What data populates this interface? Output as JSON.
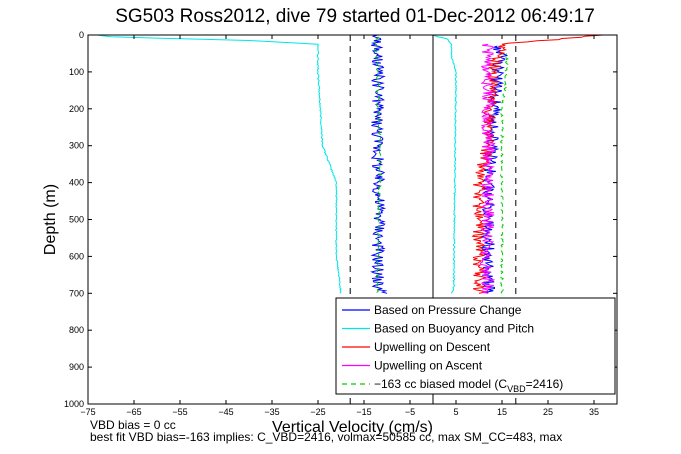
{
  "chart_data": {
    "type": "line",
    "title": "SG503 Ross2012, dive 79 started 01-Dec-2012 06:49:17",
    "xlabel": "Vertical Velocity (cm/s)",
    "ylabel": "Depth (m)",
    "xlim": [
      -75,
      40
    ],
    "ylim": [
      0,
      1000
    ],
    "y_reversed": true,
    "xticks": [
      -75,
      -65,
      -55,
      -45,
      -35,
      -25,
      -15,
      -5,
      5,
      15,
      25,
      35
    ],
    "yticks": [
      0,
      100,
      200,
      300,
      400,
      500,
      600,
      700,
      800,
      900,
      1000
    ],
    "grid": false,
    "legend_position": "bottom-right",
    "vertical_lines": [
      {
        "x": 0,
        "style": "solid",
        "color": "#000000"
      },
      {
        "x": -18,
        "style": "dashed",
        "color": "#000000"
      },
      {
        "x": 18,
        "style": "dashed",
        "color": "#000000"
      }
    ],
    "series": [
      {
        "name": "Based on Pressure Change",
        "color": "#0000ff",
        "style": "solid",
        "segments": [
          {
            "depth": [
              0,
              25,
              100,
              200,
              300,
              400,
              500,
              600,
              690,
              700
            ],
            "velocity": [
              -12,
              -12.5,
              -12,
              -12,
              -12,
              -12,
              -11.5,
              -12,
              -12,
              -10
            ]
          },
          {
            "depth": [
              700,
              690,
              600,
              500,
              400,
              300,
              200,
              100,
              50,
              30
            ],
            "velocity": [
              12,
              12,
              12,
              12,
              12,
              13,
              13.5,
              14,
              15,
              14
            ]
          }
        ]
      },
      {
        "name": "Based on Buoyancy and Pitch",
        "color": "#00e6e6",
        "style": "solid",
        "segments": [
          {
            "depth": [
              0,
              5,
              15,
              25,
              100,
              300,
              400,
              500,
              600,
              700
            ],
            "velocity": [
              -73,
              -70,
              -40,
              -25,
              -25,
              -24,
              -21,
              -21,
              -21,
              -20
            ]
          },
          {
            "depth": [
              700,
              690,
              100,
              60,
              25,
              10,
              5,
              0
            ],
            "velocity": [
              4,
              4.5,
              5,
              4,
              4,
              3,
              1,
              0
            ]
          }
        ]
      },
      {
        "name": "Upwelling on Descent",
        "color": "#ff0000",
        "style": "solid",
        "segments": [
          {
            "depth": [
              0,
              25,
              100,
              200,
              300,
              400,
              500,
              600,
              700
            ],
            "velocity": [
              37,
              15,
              13,
              12.5,
              12,
              10,
              10,
              10,
              10
            ]
          }
        ]
      },
      {
        "name": "Upwelling on Ascent",
        "color": "#ff00ff",
        "style": "solid",
        "segments": [
          {
            "depth": [
              700,
              600,
              500,
              400,
              300,
              200,
              100,
              25
            ],
            "velocity": [
              12,
              11.5,
              12,
              12,
              12,
              12,
              12,
              12
            ]
          }
        ]
      },
      {
        "name": "−163 cc biased model (C",
        "name_subscript": "VBD",
        "name_suffix": "=2416)",
        "color": "#00cc00",
        "style": "dashed",
        "segments": [
          {
            "depth": [
              5,
              25,
              100,
              200,
              300,
              400,
              500,
              600,
              700
            ],
            "velocity": [
              -12,
              -12.5,
              -12,
              -12,
              -11.5,
              -11.5,
              -12,
              -12,
              -12
            ]
          },
          {
            "depth": [
              700,
              600,
              500,
              400,
              300,
              200,
              100,
              50
            ],
            "velocity": [
              15,
              15,
              15,
              15,
              15,
              15,
              16,
              16
            ]
          }
        ]
      }
    ]
  },
  "footer": {
    "line1": "VBD bias = 0 cc",
    "line2": "best fit VBD bias=-163 implies: C_VBD=2416, volmax=50585 cc, max SM_CC=483, max"
  }
}
